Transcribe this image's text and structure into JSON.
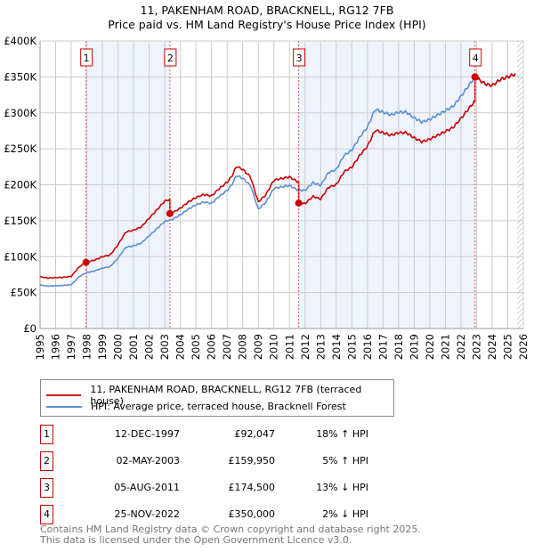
{
  "chart_data": {
    "type": "line",
    "title": "11, PAKENHAM ROAD, BRACKNELL, RG12 7FB",
    "subtitle": "Price paid vs. HM Land Registry's House Price Index (HPI)",
    "xlim": [
      1995,
      2026
    ],
    "ylim": [
      0,
      400000
    ],
    "yticks": [
      {
        "v": 0,
        "label": "£0"
      },
      {
        "v": 50000,
        "label": "£50K"
      },
      {
        "v": 100000,
        "label": "£100K"
      },
      {
        "v": 150000,
        "label": "£150K"
      },
      {
        "v": 200000,
        "label": "£200K"
      },
      {
        "v": 250000,
        "label": "£250K"
      },
      {
        "v": 300000,
        "label": "£300K"
      },
      {
        "v": 350000,
        "label": "£350K"
      },
      {
        "v": 400000,
        "label": "£400K"
      }
    ],
    "xticks": [
      "1995",
      "1996",
      "1997",
      "1998",
      "1999",
      "2000",
      "2001",
      "2002",
      "2003",
      "2004",
      "2005",
      "2006",
      "2007",
      "2008",
      "2009",
      "2010",
      "2011",
      "2012",
      "2013",
      "2014",
      "2015",
      "2016",
      "2017",
      "2018",
      "2019",
      "2020",
      "2021",
      "2022",
      "2023",
      "2024",
      "2025",
      "2026"
    ],
    "grid": true,
    "hatch_from": 2025.6,
    "colors": {
      "property": "#cc0000",
      "hpi": "#5b8fd4",
      "shade": "#eef3fc"
    },
    "hpi": {
      "x": [
        1995,
        1995.5,
        1996,
        1996.5,
        1997,
        1997.5,
        1998,
        1998.5,
        1999,
        1999.5,
        2000,
        2000.5,
        2001,
        2001.5,
        2002,
        2002.5,
        2003,
        2003.5,
        2004,
        2004.5,
        2005,
        2005.5,
        2006,
        2006.5,
        2007,
        2007.3,
        2007.6,
        2008,
        2008.5,
        2009,
        2009.5,
        2010,
        2010.5,
        2011,
        2011.5,
        2012,
        2012.5,
        2013,
        2013.5,
        2014,
        2014.5,
        2015,
        2015.5,
        2016,
        2016.5,
        2017,
        2017.5,
        2018,
        2018.5,
        2019,
        2019.5,
        2020,
        2020.5,
        2021,
        2021.5,
        2022,
        2022.5,
        2022.9,
        2023.3,
        2023.6,
        2024,
        2024.5,
        2025,
        2025.5
      ],
      "y": [
        60600,
        59000,
        59500,
        60000,
        61000,
        72000,
        78000,
        80000,
        84000,
        86000,
        98000,
        113000,
        115000,
        119000,
        129000,
        139000,
        149000,
        152000,
        158000,
        166000,
        172000,
        176000,
        174000,
        184000,
        192000,
        200000,
        213000,
        209000,
        199000,
        166000,
        176000,
        195000,
        197000,
        199000,
        193000,
        192000,
        203000,
        199000,
        217000,
        221000,
        241000,
        248000,
        266000,
        280000,
        305000,
        301000,
        297000,
        301000,
        301000,
        293000,
        287000,
        291000,
        297000,
        303000,
        309000,
        323000,
        338000,
        350000,
        344000,
        340000,
        338000,
        346000,
        350000,
        354000
      ]
    },
    "sales": [
      {
        "label": "1",
        "x": 1997.95,
        "date": "12-DEC-1997",
        "price": 92047,
        "price_text": "£92,047",
        "hpi_text": "18% ↑ HPI"
      },
      {
        "label": "2",
        "x": 2003.33,
        "date": "02-MAY-2003",
        "price": 159950,
        "price_text": "£159,950",
        "hpi_text": "5% ↑ HPI"
      },
      {
        "label": "3",
        "x": 2011.59,
        "date": "05-AUG-2011",
        "price": 174500,
        "price_text": "£174,500",
        "hpi_text": "13% ↓ HPI"
      },
      {
        "label": "4",
        "x": 2022.9,
        "date": "25-NOV-2022",
        "price": 350000,
        "price_text": "£350,000",
        "hpi_text": "2% ↓ HPI"
      }
    ],
    "legend": [
      "11, PAKENHAM ROAD, BRACKNELL, RG12 7FB (terraced house)",
      "HPI: Average price, terraced house, Bracknell Forest"
    ]
  },
  "footer": [
    "Contains HM Land Registry data © Crown copyright and database right 2025.",
    "This data is licensed under the Open Government Licence v3.0."
  ]
}
